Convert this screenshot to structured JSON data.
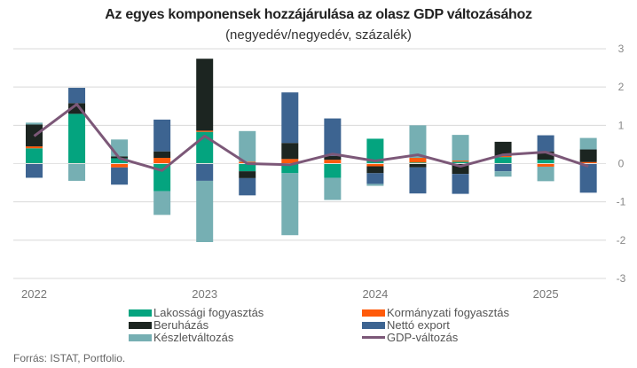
{
  "chart_data": {
    "type": "bar",
    "stacked": true,
    "title": "Az egyes komponensek hozzájárulása az olasz GDP változásához",
    "subtitle": "(negyedév/negyedév, százalék)",
    "xlabel": "",
    "ylabel": "",
    "ylim": [
      -3,
      3
    ],
    "yticks": [
      "3",
      "2",
      "1",
      "0",
      "-1",
      "-2",
      "-3"
    ],
    "ytick_values": [
      3,
      2,
      1,
      0,
      -1,
      -2,
      -3
    ],
    "grid": true,
    "y_axis_side": "right",
    "x_labels": [
      {
        "label": "2022",
        "index": 0
      },
      {
        "label": "2023",
        "index": 4
      },
      {
        "label": "2024",
        "index": 8
      },
      {
        "label": "2025",
        "index": 12
      }
    ],
    "categories": [
      "2022 Q1",
      "2022 Q2",
      "2022 Q3",
      "2022 Q4",
      "2023 Q1",
      "2023 Q2",
      "2023 Q3",
      "2023 Q4",
      "2024 Q1",
      "2024 Q2",
      "2024 Q3",
      "2024 Q4",
      "2025 Q1",
      "2025 Q2"
    ],
    "series": [
      {
        "name": "Lakossági fogyasztás",
        "key": "lakossagi",
        "color": "#04A47F",
        "values": [
          0.4,
          1.3,
          0.14,
          -0.72,
          0.83,
          -0.2,
          -0.25,
          -0.37,
          0.65,
          0.03,
          0.05,
          0.17,
          0.1,
          0.0
        ]
      },
      {
        "name": "Kormányzati fogyasztás",
        "key": "kormanyzati",
        "color": "#FF5A0A",
        "values": [
          0.05,
          0.0,
          -0.1,
          0.15,
          0.03,
          0.05,
          0.12,
          0.1,
          -0.07,
          0.12,
          0.03,
          0.03,
          -0.08,
          0.04
        ]
      },
      {
        "name": "Beruházás",
        "key": "beruhazas",
        "color": "#1C2521",
        "values": [
          0.57,
          0.28,
          0.05,
          0.17,
          1.88,
          -0.18,
          0.42,
          0.1,
          -0.18,
          -0.1,
          -0.27,
          0.37,
          0.22,
          0.33
        ]
      },
      {
        "name": "Nettó export",
        "key": "netto_export",
        "color": "#3D6491",
        "values": [
          -0.37,
          0.4,
          -0.45,
          0.83,
          -0.45,
          -0.45,
          1.32,
          0.98,
          -0.28,
          -0.68,
          -0.52,
          -0.2,
          0.42,
          -0.76
        ]
      },
      {
        "name": "Készletváltozás",
        "key": "keszlet",
        "color": "#76AFB3",
        "values": [
          0.05,
          -0.45,
          0.44,
          -0.62,
          -1.6,
          0.8,
          -1.62,
          -0.58,
          -0.05,
          0.85,
          0.67,
          -0.14,
          -0.38,
          0.3
        ]
      }
    ],
    "line_series": {
      "name": "GDP-változás",
      "color": "#7C5878",
      "values": [
        0.72,
        1.55,
        0.14,
        -0.18,
        0.72,
        0.0,
        -0.03,
        0.25,
        0.07,
        0.23,
        -0.07,
        0.23,
        0.3,
        -0.07
      ]
    },
    "legend_position": "bottom"
  },
  "legend": {
    "items": [
      {
        "label": "Lakossági fogyasztás",
        "color": "#04A47F",
        "type": "bar"
      },
      {
        "label": "Kormányzati fogyasztás",
        "color": "#FF5A0A",
        "type": "bar"
      },
      {
        "label": "Beruházás",
        "color": "#1C2521",
        "type": "bar"
      },
      {
        "label": "Nettó export",
        "color": "#3D6491",
        "type": "bar"
      },
      {
        "label": "Készletváltozás",
        "color": "#76AFB3",
        "type": "bar"
      },
      {
        "label": "GDP-változás",
        "color": "#7C5878",
        "type": "line"
      }
    ]
  },
  "source": "Forrás:  ISTAT, Portfolio."
}
